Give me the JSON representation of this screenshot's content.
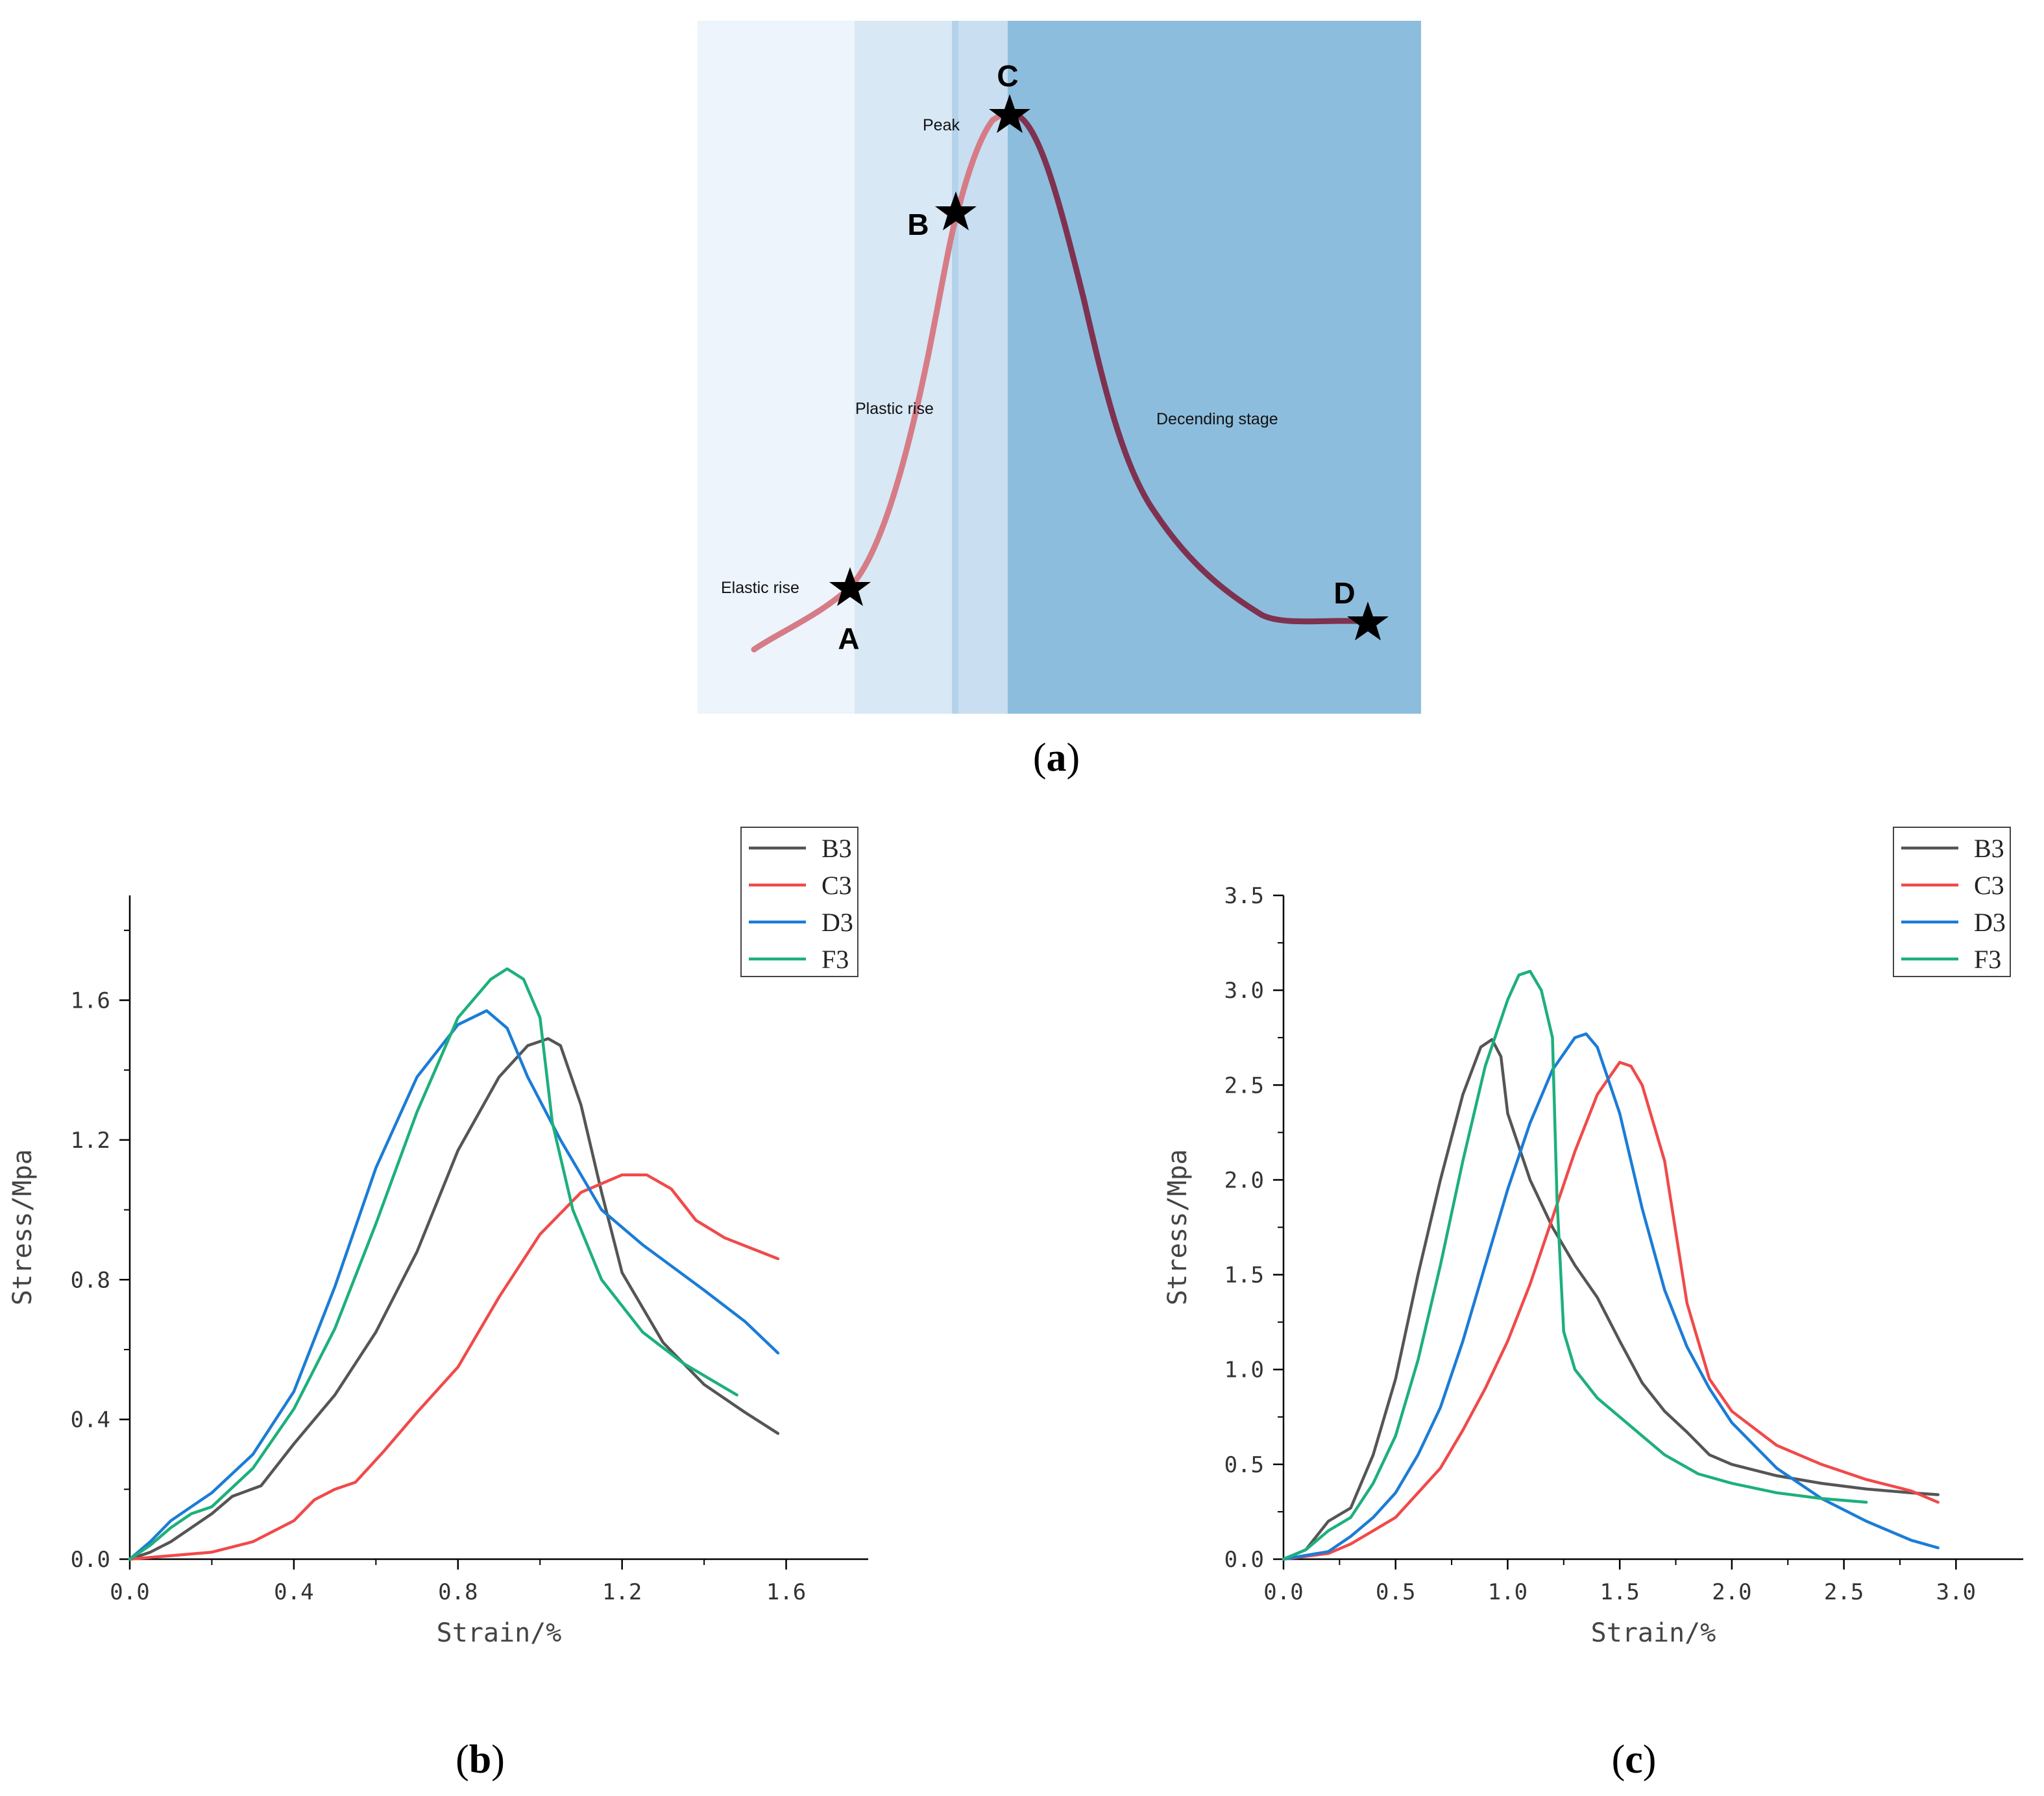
{
  "figure": {
    "panel_a": {
      "caption": "a",
      "stage_labels": {
        "elastic": "Elastic rise",
        "plastic": "Plastic rise",
        "peak": "Peak",
        "descending": "Decending stage"
      },
      "points": [
        "A",
        "B",
        "C",
        "D"
      ],
      "colors": {
        "zone1": "#edf4fb",
        "zone2": "#d9e8f5",
        "zone2_line": "#b4d3ea",
        "zone3": "#c9def1",
        "zone4": "#8dbddd",
        "curve_rise": "#d67c86",
        "curve_fall": "#7e3250"
      },
      "star_icon": "star-icon"
    },
    "panel_b": {
      "caption": "b"
    },
    "panel_c": {
      "caption": "c"
    }
  },
  "chart_data": [
    {
      "type": "line",
      "panel": "b",
      "xlabel": "Strain/%",
      "ylabel": "Stress/Mpa",
      "xlim": [
        0,
        1.8
      ],
      "ylim": [
        0,
        1.9
      ],
      "xticks": [
        "0.0",
        "0.4",
        "0.8",
        "1.2",
        "1.6"
      ],
      "xtick_values": [
        0,
        0.4,
        0.8,
        1.2,
        1.6
      ],
      "yticks": [
        "0.0",
        "0.4",
        "0.8",
        "1.2",
        "1.6"
      ],
      "ytick_values": [
        0,
        0.4,
        0.8,
        1.2,
        1.6
      ],
      "legend_position": "top-right",
      "series": [
        {
          "name": "B3",
          "color": "#555555",
          "points": [
            [
              0,
              0
            ],
            [
              0.05,
              0.02
            ],
            [
              0.1,
              0.05
            ],
            [
              0.2,
              0.13
            ],
            [
              0.25,
              0.18
            ],
            [
              0.32,
              0.21
            ],
            [
              0.4,
              0.33
            ],
            [
              0.5,
              0.47
            ],
            [
              0.6,
              0.65
            ],
            [
              0.7,
              0.88
            ],
            [
              0.8,
              1.17
            ],
            [
              0.9,
              1.38
            ],
            [
              0.97,
              1.47
            ],
            [
              1.02,
              1.49
            ],
            [
              1.05,
              1.47
            ],
            [
              1.1,
              1.3
            ],
            [
              1.15,
              1.05
            ],
            [
              1.2,
              0.82
            ],
            [
              1.3,
              0.62
            ],
            [
              1.4,
              0.5
            ],
            [
              1.5,
              0.42
            ],
            [
              1.58,
              0.36
            ]
          ]
        },
        {
          "name": "C3",
          "color": "#f04a4a",
          "points": [
            [
              0,
              0
            ],
            [
              0.1,
              0.01
            ],
            [
              0.2,
              0.02
            ],
            [
              0.3,
              0.05
            ],
            [
              0.4,
              0.11
            ],
            [
              0.45,
              0.17
            ],
            [
              0.5,
              0.2
            ],
            [
              0.55,
              0.22
            ],
            [
              0.62,
              0.31
            ],
            [
              0.7,
              0.42
            ],
            [
              0.8,
              0.55
            ],
            [
              0.9,
              0.75
            ],
            [
              1.0,
              0.93
            ],
            [
              1.1,
              1.05
            ],
            [
              1.2,
              1.1
            ],
            [
              1.26,
              1.1
            ],
            [
              1.32,
              1.06
            ],
            [
              1.38,
              0.97
            ],
            [
              1.45,
              0.92
            ],
            [
              1.58,
              0.86
            ]
          ]
        },
        {
          "name": "D3",
          "color": "#1b7cd6",
          "points": [
            [
              0,
              0
            ],
            [
              0.05,
              0.05
            ],
            [
              0.1,
              0.11
            ],
            [
              0.15,
              0.15
            ],
            [
              0.2,
              0.19
            ],
            [
              0.3,
              0.3
            ],
            [
              0.4,
              0.48
            ],
            [
              0.5,
              0.78
            ],
            [
              0.6,
              1.12
            ],
            [
              0.7,
              1.38
            ],
            [
              0.8,
              1.53
            ],
            [
              0.87,
              1.57
            ],
            [
              0.92,
              1.52
            ],
            [
              0.97,
              1.38
            ],
            [
              1.05,
              1.2
            ],
            [
              1.15,
              1.0
            ],
            [
              1.25,
              0.9
            ],
            [
              1.4,
              0.77
            ],
            [
              1.5,
              0.68
            ],
            [
              1.58,
              0.59
            ]
          ]
        },
        {
          "name": "F3",
          "color": "#1db07a",
          "points": [
            [
              0,
              0
            ],
            [
              0.05,
              0.04
            ],
            [
              0.1,
              0.09
            ],
            [
              0.15,
              0.13
            ],
            [
              0.2,
              0.15
            ],
            [
              0.3,
              0.26
            ],
            [
              0.4,
              0.43
            ],
            [
              0.5,
              0.66
            ],
            [
              0.6,
              0.96
            ],
            [
              0.7,
              1.28
            ],
            [
              0.8,
              1.55
            ],
            [
              0.88,
              1.66
            ],
            [
              0.92,
              1.69
            ],
            [
              0.96,
              1.66
            ],
            [
              1.0,
              1.55
            ],
            [
              1.03,
              1.25
            ],
            [
              1.08,
              1.0
            ],
            [
              1.15,
              0.8
            ],
            [
              1.25,
              0.65
            ],
            [
              1.35,
              0.56
            ],
            [
              1.48,
              0.47
            ]
          ]
        }
      ]
    },
    {
      "type": "line",
      "panel": "c",
      "xlabel": "Strain/%",
      "ylabel": "Stress/Mpa",
      "xlim": [
        0,
        3.3
      ],
      "ylim": [
        0,
        3.5
      ],
      "xticks": [
        "0.0",
        "0.5",
        "1.0",
        "1.5",
        "2.0",
        "2.5",
        "3.0"
      ],
      "xtick_values": [
        0,
        0.5,
        1.0,
        1.5,
        2.0,
        2.5,
        3.0
      ],
      "yticks": [
        "0.0",
        "0.5",
        "1.0",
        "1.5",
        "2.0",
        "2.5",
        "3.0",
        "3.5"
      ],
      "ytick_values": [
        0,
        0.5,
        1.0,
        1.5,
        2.0,
        2.5,
        3.0,
        3.5
      ],
      "legend_position": "top-right",
      "series": [
        {
          "name": "B3",
          "color": "#555555",
          "points": [
            [
              0,
              0
            ],
            [
              0.1,
              0.05
            ],
            [
              0.2,
              0.2
            ],
            [
              0.3,
              0.27
            ],
            [
              0.4,
              0.55
            ],
            [
              0.5,
              0.95
            ],
            [
              0.6,
              1.5
            ],
            [
              0.7,
              2.0
            ],
            [
              0.8,
              2.45
            ],
            [
              0.88,
              2.7
            ],
            [
              0.93,
              2.74
            ],
            [
              0.97,
              2.65
            ],
            [
              1.0,
              2.35
            ],
            [
              1.1,
              2.0
            ],
            [
              1.2,
              1.75
            ],
            [
              1.3,
              1.55
            ],
            [
              1.4,
              1.38
            ],
            [
              1.5,
              1.15
            ],
            [
              1.6,
              0.93
            ],
            [
              1.7,
              0.78
            ],
            [
              1.8,
              0.67
            ],
            [
              1.9,
              0.55
            ],
            [
              2.0,
              0.5
            ],
            [
              2.2,
              0.44
            ],
            [
              2.4,
              0.4
            ],
            [
              2.6,
              0.37
            ],
            [
              2.8,
              0.35
            ],
            [
              2.92,
              0.34
            ]
          ]
        },
        {
          "name": "C3",
          "color": "#f04a4a",
          "points": [
            [
              0,
              0
            ],
            [
              0.2,
              0.03
            ],
            [
              0.3,
              0.08
            ],
            [
              0.4,
              0.15
            ],
            [
              0.5,
              0.22
            ],
            [
              0.6,
              0.35
            ],
            [
              0.7,
              0.48
            ],
            [
              0.8,
              0.68
            ],
            [
              0.9,
              0.9
            ],
            [
              1.0,
              1.15
            ],
            [
              1.1,
              1.45
            ],
            [
              1.2,
              1.8
            ],
            [
              1.3,
              2.15
            ],
            [
              1.4,
              2.45
            ],
            [
              1.5,
              2.62
            ],
            [
              1.55,
              2.6
            ],
            [
              1.6,
              2.5
            ],
            [
              1.7,
              2.1
            ],
            [
              1.8,
              1.35
            ],
            [
              1.9,
              0.95
            ],
            [
              2.0,
              0.78
            ],
            [
              2.2,
              0.6
            ],
            [
              2.4,
              0.5
            ],
            [
              2.6,
              0.42
            ],
            [
              2.8,
              0.36
            ],
            [
              2.92,
              0.3
            ]
          ]
        },
        {
          "name": "D3",
          "color": "#1b7cd6",
          "points": [
            [
              0,
              0
            ],
            [
              0.2,
              0.04
            ],
            [
              0.3,
              0.12
            ],
            [
              0.4,
              0.22
            ],
            [
              0.5,
              0.35
            ],
            [
              0.6,
              0.55
            ],
            [
              0.7,
              0.8
            ],
            [
              0.8,
              1.15
            ],
            [
              0.9,
              1.55
            ],
            [
              1.0,
              1.95
            ],
            [
              1.1,
              2.3
            ],
            [
              1.2,
              2.58
            ],
            [
              1.3,
              2.75
            ],
            [
              1.35,
              2.77
            ],
            [
              1.4,
              2.7
            ],
            [
              1.5,
              2.35
            ],
            [
              1.6,
              1.85
            ],
            [
              1.7,
              1.42
            ],
            [
              1.8,
              1.12
            ],
            [
              1.9,
              0.9
            ],
            [
              2.0,
              0.72
            ],
            [
              2.2,
              0.48
            ],
            [
              2.4,
              0.32
            ],
            [
              2.6,
              0.2
            ],
            [
              2.8,
              0.1
            ],
            [
              2.92,
              0.06
            ]
          ]
        },
        {
          "name": "F3",
          "color": "#1db07a",
          "points": [
            [
              0,
              0
            ],
            [
              0.1,
              0.05
            ],
            [
              0.2,
              0.15
            ],
            [
              0.3,
              0.22
            ],
            [
              0.4,
              0.4
            ],
            [
              0.5,
              0.65
            ],
            [
              0.6,
              1.05
            ],
            [
              0.7,
              1.55
            ],
            [
              0.8,
              2.1
            ],
            [
              0.9,
              2.6
            ],
            [
              1.0,
              2.95
            ],
            [
              1.05,
              3.08
            ],
            [
              1.1,
              3.1
            ],
            [
              1.15,
              3.0
            ],
            [
              1.2,
              2.75
            ],
            [
              1.22,
              1.9
            ],
            [
              1.25,
              1.2
            ],
            [
              1.3,
              1.0
            ],
            [
              1.4,
              0.85
            ],
            [
              1.5,
              0.75
            ],
            [
              1.6,
              0.65
            ],
            [
              1.7,
              0.55
            ],
            [
              1.85,
              0.45
            ],
            [
              2.0,
              0.4
            ],
            [
              2.2,
              0.35
            ],
            [
              2.4,
              0.32
            ],
            [
              2.6,
              0.3
            ]
          ]
        }
      ]
    }
  ]
}
